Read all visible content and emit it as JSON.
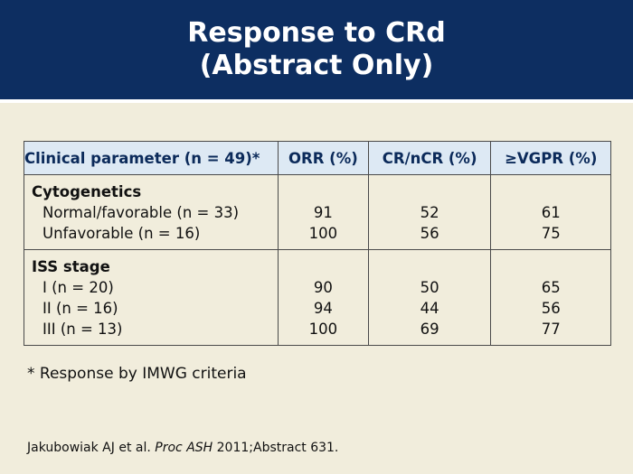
{
  "slide": {
    "title_line1": "Response to CRd",
    "title_line2": "(Abstract Only)",
    "header_color": "#0d2e61",
    "background_color": "#f1eddc",
    "table_header_color": "#dde9f4"
  },
  "table": {
    "headers": [
      "Clinical parameter (n = 49)*",
      "ORR (%)",
      "CR/nCR (%)",
      "≥VGPR (%)"
    ],
    "sections": [
      {
        "title": "Cytogenetics",
        "rows": [
          {
            "label": "Normal/favorable (n = 33)",
            "orr": "91",
            "crncr": "52",
            "vgpr": "61"
          },
          {
            "label": "Unfavorable (n = 16)",
            "orr": "100",
            "crncr": "56",
            "vgpr": "75"
          }
        ]
      },
      {
        "title": "ISS stage",
        "rows": [
          {
            "label": "I (n = 20)",
            "orr": "90",
            "crncr": "50",
            "vgpr": "65"
          },
          {
            "label": "II (n = 16)",
            "orr": "94",
            "crncr": "44",
            "vgpr": "56"
          },
          {
            "label": "III (n = 13)",
            "orr": "100",
            "crncr": "69",
            "vgpr": "77"
          }
        ]
      }
    ]
  },
  "footnote": "* Response by IMWG criteria",
  "citation": {
    "authors": "Jakubowiak AJ et al.",
    "journal": "Proc ASH",
    "rest": "2011;Abstract 631."
  }
}
